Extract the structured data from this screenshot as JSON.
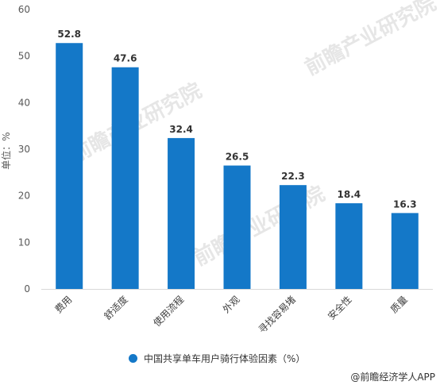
{
  "chart_data": {
    "type": "bar",
    "categories": [
      "费用",
      "舒适度",
      "使用流程",
      "外观",
      "寻找容易堵",
      "安全性",
      "质量"
    ],
    "values": [
      52.8,
      47.6,
      32.4,
      26.5,
      22.3,
      18.4,
      16.3
    ],
    "ylabel": "单位：%",
    "ylim": [
      0,
      60
    ],
    "yticks": [
      0,
      10,
      20,
      30,
      40,
      50,
      60
    ],
    "grid": false,
    "legend_position": "bottom",
    "bar_color": "#1478c8"
  },
  "legend": {
    "label": "中国共享单车用户骑行体验因素（%）",
    "color": "#1478c8"
  },
  "watermark": {
    "text": "前瞻产业研究院"
  },
  "credit": {
    "text": "@前瞻经济学人APP"
  }
}
